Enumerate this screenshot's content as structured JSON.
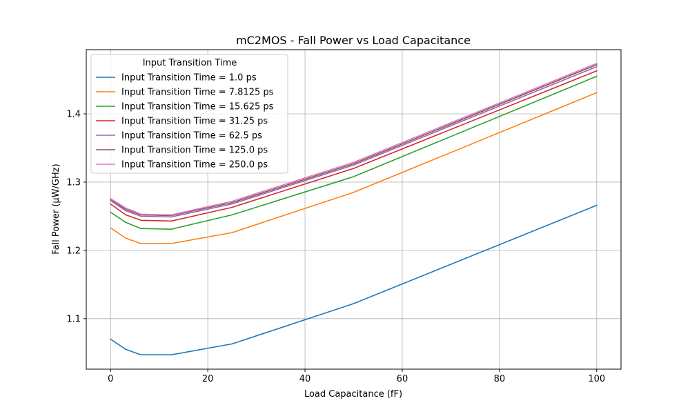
{
  "chart_data": {
    "type": "line",
    "title": "mC2MOS - Fall Power vs Load Capacitance",
    "xlabel": "Load Capacitance (fF)",
    "ylabel": "Fall Power (µW/GHz)",
    "xlim": [
      -5,
      105
    ],
    "ylim": [
      1.026,
      1.494
    ],
    "xticks": [
      0,
      20,
      40,
      60,
      80,
      100
    ],
    "xtick_labels": [
      "0",
      "20",
      "40",
      "60",
      "80",
      "100"
    ],
    "yticks": [
      1.1,
      1.2,
      1.3,
      1.4
    ],
    "ytick_labels": [
      "1.1",
      "1.2",
      "1.3",
      "1.4"
    ],
    "grid": true,
    "legend": {
      "title": "Input Transition Time",
      "placement": "top-left"
    },
    "x": [
      0,
      3.125,
      6.25,
      12.5,
      25,
      50,
      100
    ],
    "series": [
      {
        "name": "Input Transition Time = 1.0 ps",
        "color": "#1f77b4",
        "values": [
          1.07,
          1.055,
          1.047,
          1.047,
          1.063,
          1.122,
          1.266
        ]
      },
      {
        "name": "Input Transition Time = 7.8125 ps",
        "color": "#ff7f0e",
        "values": [
          1.233,
          1.218,
          1.21,
          1.21,
          1.226,
          1.285,
          1.431
        ]
      },
      {
        "name": "Input Transition Time = 15.625 ps",
        "color": "#2ca02c",
        "values": [
          1.256,
          1.241,
          1.232,
          1.231,
          1.252,
          1.308,
          1.455
        ]
      },
      {
        "name": "Input Transition Time = 31.25 ps",
        "color": "#d62728",
        "values": [
          1.268,
          1.252,
          1.244,
          1.243,
          1.263,
          1.32,
          1.463
        ]
      },
      {
        "name": "Input Transition Time = 62.5 ps",
        "color": "#9467bd",
        "values": [
          1.273,
          1.258,
          1.25,
          1.249,
          1.268,
          1.325,
          1.469
        ]
      },
      {
        "name": "Input Transition Time = 125.0 ps",
        "color": "#8c564b",
        "values": [
          1.275,
          1.26,
          1.252,
          1.251,
          1.27,
          1.327,
          1.472
        ]
      },
      {
        "name": "Input Transition Time = 250.0 ps",
        "color": "#e377c2",
        "values": [
          1.276,
          1.262,
          1.253,
          1.252,
          1.272,
          1.329,
          1.474
        ]
      }
    ]
  }
}
